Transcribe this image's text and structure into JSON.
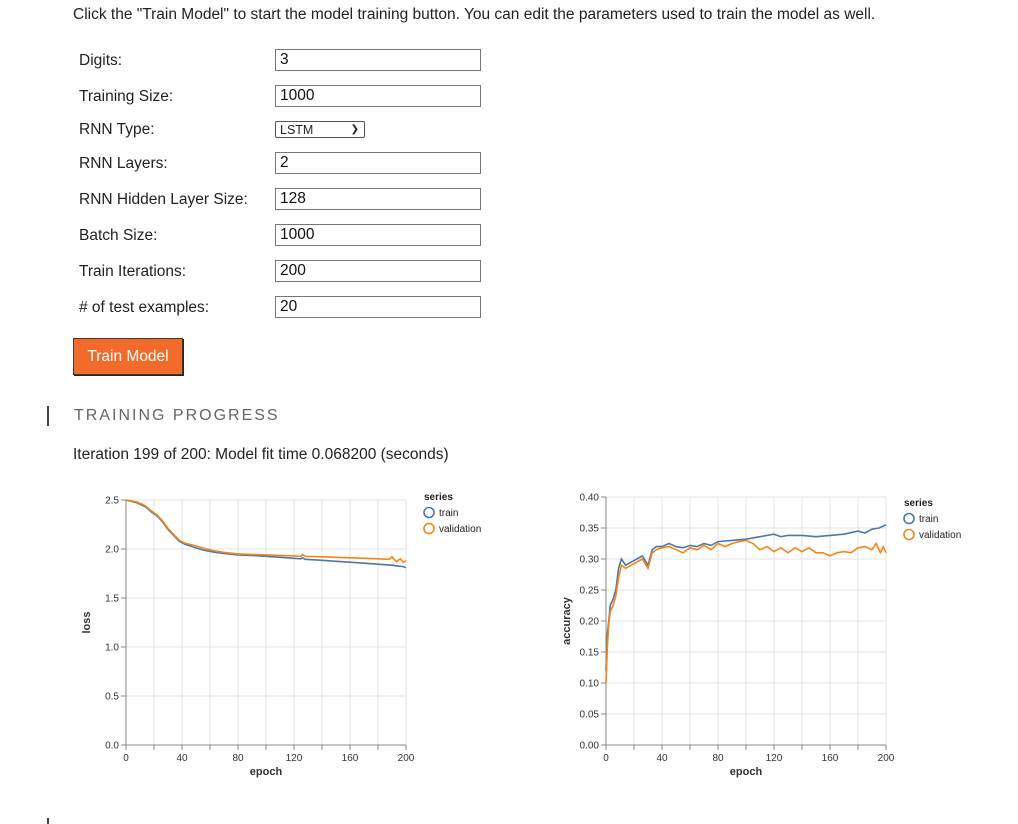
{
  "instructions": "Click the \"Train Model\" to start the model training button. You can edit the parameters used to train the model as well.",
  "form": {
    "digits_label": "Digits:",
    "digits_value": "3",
    "training_size_label": "Training Size:",
    "training_size_value": "1000",
    "rnn_type_label": "RNN Type:",
    "rnn_type_value": "LSTM",
    "rnn_layers_label": "RNN Layers:",
    "rnn_layers_value": "2",
    "hidden_size_label": "RNN Hidden Layer Size:",
    "hidden_size_value": "128",
    "batch_size_label": "Batch Size:",
    "batch_size_value": "1000",
    "train_iterations_label": "Train Iterations:",
    "train_iterations_value": "200",
    "test_examples_label": "# of test examples:",
    "test_examples_value": "20"
  },
  "train_button_label": "Train Model",
  "section_title": "TRAINING PROGRESS",
  "status_text": "Iteration 199 of 200: Model fit time 0.068200 (seconds)",
  "colors": {
    "train": "#4c78a8",
    "validation": "#f58518",
    "accent": "#f26b2a"
  },
  "chart_data": [
    {
      "type": "line",
      "xlabel": "epoch",
      "ylabel": "loss",
      "xlim": [
        0,
        200
      ],
      "ylim": [
        0,
        2.5
      ],
      "xticks": [
        "0",
        "40",
        "80",
        "120",
        "160",
        "200"
      ],
      "yticks": [
        "0.0",
        "0.5",
        "1.0",
        "1.5",
        "2.0",
        "2.5"
      ],
      "legend_title": "series",
      "legend_position": "right",
      "grid": true,
      "series": [
        {
          "name": "train",
          "points": [
            [
              0,
              2.5
            ],
            [
              8,
              2.47
            ],
            [
              14,
              2.43
            ],
            [
              18,
              2.38
            ],
            [
              22,
              2.34
            ],
            [
              26,
              2.28
            ],
            [
              30,
              2.2
            ],
            [
              34,
              2.14
            ],
            [
              38,
              2.08
            ],
            [
              42,
              2.05
            ],
            [
              48,
              2.02
            ],
            [
              55,
              1.99
            ],
            [
              62,
              1.97
            ],
            [
              70,
              1.955
            ],
            [
              80,
              1.94
            ],
            [
              90,
              1.935
            ],
            [
              100,
              1.925
            ],
            [
              110,
              1.915
            ],
            [
              120,
              1.905
            ],
            [
              125,
              1.9
            ],
            [
              126,
              1.91
            ],
            [
              128,
              1.895
            ],
            [
              140,
              1.885
            ],
            [
              150,
              1.875
            ],
            [
              160,
              1.865
            ],
            [
              170,
              1.855
            ],
            [
              180,
              1.845
            ],
            [
              190,
              1.835
            ],
            [
              195,
              1.825
            ],
            [
              198,
              1.82
            ],
            [
              200,
              1.81
            ]
          ]
        },
        {
          "name": "validation",
          "points": [
            [
              0,
              2.5
            ],
            [
              8,
              2.48
            ],
            [
              14,
              2.44
            ],
            [
              18,
              2.39
            ],
            [
              22,
              2.35
            ],
            [
              26,
              2.29
            ],
            [
              30,
              2.21
            ],
            [
              34,
              2.15
            ],
            [
              38,
              2.09
            ],
            [
              42,
              2.06
            ],
            [
              48,
              2.04
            ],
            [
              55,
              2.01
            ],
            [
              62,
              1.985
            ],
            [
              70,
              1.965
            ],
            [
              80,
              1.95
            ],
            [
              90,
              1.945
            ],
            [
              100,
              1.94
            ],
            [
              110,
              1.935
            ],
            [
              120,
              1.93
            ],
            [
              125,
              1.925
            ],
            [
              126,
              1.945
            ],
            [
              128,
              1.925
            ],
            [
              140,
              1.92
            ],
            [
              150,
              1.915
            ],
            [
              160,
              1.91
            ],
            [
              170,
              1.905
            ],
            [
              180,
              1.9
            ],
            [
              188,
              1.895
            ],
            [
              190,
              1.92
            ],
            [
              193,
              1.87
            ],
            [
              196,
              1.9
            ],
            [
              198,
              1.865
            ],
            [
              200,
              1.88
            ]
          ]
        }
      ]
    },
    {
      "type": "line",
      "xlabel": "epoch",
      "ylabel": "accuracy",
      "xlim": [
        0,
        200
      ],
      "ylim": [
        0,
        0.4
      ],
      "xticks": [
        "0",
        "40",
        "80",
        "120",
        "160",
        "200"
      ],
      "yticks": [
        "0.00",
        "0.05",
        "0.10",
        "0.15",
        "0.20",
        "0.25",
        "0.30",
        "0.35",
        "0.40"
      ],
      "legend_title": "series",
      "legend_position": "right",
      "grid": true,
      "series": [
        {
          "name": "train",
          "points": [
            [
              0,
              0.12
            ],
            [
              1,
              0.18
            ],
            [
              2,
              0.2
            ],
            [
              3,
              0.225
            ],
            [
              5,
              0.235
            ],
            [
              7,
              0.25
            ],
            [
              9,
              0.285
            ],
            [
              11,
              0.3
            ],
            [
              14,
              0.29
            ],
            [
              18,
              0.295
            ],
            [
              22,
              0.3
            ],
            [
              26,
              0.305
            ],
            [
              30,
              0.29
            ],
            [
              33,
              0.315
            ],
            [
              36,
              0.32
            ],
            [
              40,
              0.32
            ],
            [
              45,
              0.325
            ],
            [
              50,
              0.32
            ],
            [
              55,
              0.318
            ],
            [
              60,
              0.322
            ],
            [
              65,
              0.32
            ],
            [
              70,
              0.325
            ],
            [
              75,
              0.322
            ],
            [
              80,
              0.328
            ],
            [
              90,
              0.33
            ],
            [
              100,
              0.332
            ],
            [
              110,
              0.336
            ],
            [
              120,
              0.34
            ],
            [
              125,
              0.336
            ],
            [
              130,
              0.338
            ],
            [
              140,
              0.338
            ],
            [
              150,
              0.336
            ],
            [
              160,
              0.338
            ],
            [
              170,
              0.34
            ],
            [
              180,
              0.345
            ],
            [
              185,
              0.342
            ],
            [
              190,
              0.348
            ],
            [
              195,
              0.35
            ],
            [
              200,
              0.355
            ]
          ]
        },
        {
          "name": "validation",
          "points": [
            [
              0,
              0.1
            ],
            [
              1,
              0.16
            ],
            [
              2,
              0.195
            ],
            [
              3,
              0.215
            ],
            [
              5,
              0.225
            ],
            [
              7,
              0.24
            ],
            [
              9,
              0.27
            ],
            [
              11,
              0.29
            ],
            [
              14,
              0.285
            ],
            [
              18,
              0.29
            ],
            [
              22,
              0.295
            ],
            [
              26,
              0.3
            ],
            [
              30,
              0.285
            ],
            [
              33,
              0.31
            ],
            [
              36,
              0.315
            ],
            [
              40,
              0.318
            ],
            [
              45,
              0.32
            ],
            [
              50,
              0.315
            ],
            [
              55,
              0.31
            ],
            [
              60,
              0.318
            ],
            [
              65,
              0.315
            ],
            [
              70,
              0.322
            ],
            [
              75,
              0.315
            ],
            [
              80,
              0.325
            ],
            [
              85,
              0.32
            ],
            [
              90,
              0.325
            ],
            [
              95,
              0.328
            ],
            [
              100,
              0.33
            ],
            [
              105,
              0.325
            ],
            [
              110,
              0.315
            ],
            [
              115,
              0.32
            ],
            [
              120,
              0.312
            ],
            [
              125,
              0.318
            ],
            [
              130,
              0.31
            ],
            [
              135,
              0.318
            ],
            [
              140,
              0.312
            ],
            [
              145,
              0.318
            ],
            [
              150,
              0.31
            ],
            [
              155,
              0.31
            ],
            [
              160,
              0.305
            ],
            [
              165,
              0.31
            ],
            [
              170,
              0.312
            ],
            [
              175,
              0.31
            ],
            [
              180,
              0.318
            ],
            [
              185,
              0.32
            ],
            [
              190,
              0.315
            ],
            [
              193,
              0.325
            ],
            [
              196,
              0.31
            ],
            [
              198,
              0.32
            ],
            [
              200,
              0.31
            ]
          ]
        }
      ]
    }
  ]
}
